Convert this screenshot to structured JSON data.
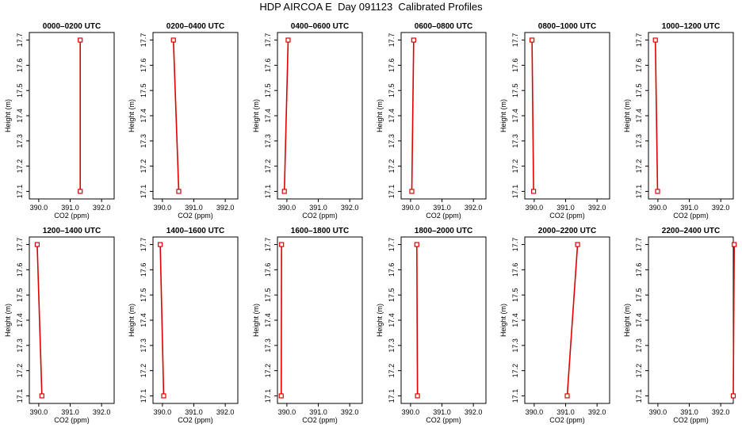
{
  "title": "HDP AIRCOA E  Day 091123  Calibrated Profiles",
  "chart_data": [
    {
      "type": "line",
      "title": "0000–0200 UTC",
      "xlabel": "CO2 (ppm)",
      "ylabel": "Height (m)",
      "xlim": [
        389.7,
        392.4
      ],
      "ylim": [
        17.07,
        17.73
      ],
      "xticks": [
        "390.0",
        "391.0",
        "392.0"
      ],
      "yticks": [
        "17.1",
        "17.2",
        "17.3",
        "17.4",
        "17.5",
        "17.6",
        "17.7"
      ],
      "grid": false,
      "series": [
        {
          "x": [
            391.32,
            391.32
          ],
          "y": [
            17.1,
            17.7
          ],
          "color": "#e00000"
        }
      ]
    },
    {
      "type": "line",
      "title": "0200–0400 UTC",
      "xlabel": "CO2 (ppm)",
      "ylabel": "Height (m)",
      "xlim": [
        389.7,
        392.4
      ],
      "ylim": [
        17.07,
        17.73
      ],
      "xticks": [
        "390.0",
        "391.0",
        "392.0"
      ],
      "yticks": [
        "17.1",
        "17.2",
        "17.3",
        "17.4",
        "17.5",
        "17.6",
        "17.7"
      ],
      "grid": false,
      "series": [
        {
          "x": [
            390.52,
            390.35
          ],
          "y": [
            17.1,
            17.7
          ],
          "color": "#e00000"
        }
      ]
    },
    {
      "type": "line",
      "title": "0400–0600 UTC",
      "xlabel": "CO2 (ppm)",
      "ylabel": "Height (m)",
      "xlim": [
        389.7,
        392.4
      ],
      "ylim": [
        17.07,
        17.73
      ],
      "xticks": [
        "390.0",
        "391.0",
        "392.0"
      ],
      "yticks": [
        "17.1",
        "17.2",
        "17.3",
        "17.4",
        "17.5",
        "17.6",
        "17.7"
      ],
      "grid": false,
      "series": [
        {
          "x": [
            389.92,
            390.04
          ],
          "y": [
            17.1,
            17.7
          ],
          "color": "#e00000"
        }
      ]
    },
    {
      "type": "line",
      "title": "0600–0800 UTC",
      "xlabel": "CO2 (ppm)",
      "ylabel": "Height (m)",
      "xlim": [
        389.7,
        392.4
      ],
      "ylim": [
        17.07,
        17.73
      ],
      "xticks": [
        "390.0",
        "391.0",
        "392.0"
      ],
      "yticks": [
        "17.1",
        "17.2",
        "17.3",
        "17.4",
        "17.5",
        "17.6",
        "17.7"
      ],
      "grid": false,
      "series": [
        {
          "x": [
            390.04,
            390.1
          ],
          "y": [
            17.1,
            17.7
          ],
          "color": "#e00000"
        }
      ]
    },
    {
      "type": "line",
      "title": "0800–1000 UTC",
      "xlabel": "CO2 (ppm)",
      "ylabel": "Height (m)",
      "xlim": [
        389.7,
        392.4
      ],
      "ylim": [
        17.07,
        17.73
      ],
      "xticks": [
        "390.0",
        "391.0",
        "392.0"
      ],
      "yticks": [
        "17.1",
        "17.2",
        "17.3",
        "17.4",
        "17.5",
        "17.6",
        "17.7"
      ],
      "grid": false,
      "series": [
        {
          "x": [
            389.98,
            389.93
          ],
          "y": [
            17.1,
            17.7
          ],
          "color": "#e00000"
        }
      ]
    },
    {
      "type": "line",
      "title": "1000–1200 UTC",
      "xlabel": "CO2 (ppm)",
      "ylabel": "Height (m)",
      "xlim": [
        389.7,
        392.4
      ],
      "ylim": [
        17.07,
        17.73
      ],
      "xticks": [
        "390.0",
        "391.0",
        "392.0"
      ],
      "yticks": [
        "17.1",
        "17.2",
        "17.3",
        "17.4",
        "17.5",
        "17.6",
        "17.7"
      ],
      "grid": false,
      "series": [
        {
          "x": [
            389.99,
            389.92
          ],
          "y": [
            17.1,
            17.7
          ],
          "color": "#e00000"
        }
      ]
    },
    {
      "type": "line",
      "title": "1200–1400 UTC",
      "xlabel": "CO2 (ppm)",
      "ylabel": "Height (m)",
      "xlim": [
        389.7,
        392.4
      ],
      "ylim": [
        17.07,
        17.73
      ],
      "xticks": [
        "390.0",
        "391.0",
        "392.0"
      ],
      "yticks": [
        "17.1",
        "17.2",
        "17.3",
        "17.4",
        "17.5",
        "17.6",
        "17.7"
      ],
      "grid": false,
      "series": [
        {
          "x": [
            390.1,
            389.95
          ],
          "y": [
            17.1,
            17.7
          ],
          "color": "#e00000"
        }
      ]
    },
    {
      "type": "line",
      "title": "1400–1600 UTC",
      "xlabel": "CO2 (ppm)",
      "ylabel": "Height (m)",
      "xlim": [
        389.7,
        392.4
      ],
      "ylim": [
        17.07,
        17.73
      ],
      "xticks": [
        "390.0",
        "391.0",
        "392.0"
      ],
      "yticks": [
        "17.1",
        "17.2",
        "17.3",
        "17.4",
        "17.5",
        "17.6",
        "17.7"
      ],
      "grid": false,
      "series": [
        {
          "x": [
            390.04,
            389.93
          ],
          "y": [
            17.1,
            17.7
          ],
          "color": "#e00000"
        }
      ]
    },
    {
      "type": "line",
      "title": "1600–1800 UTC",
      "xlabel": "CO2 (ppm)",
      "ylabel": "Height (m)",
      "xlim": [
        389.7,
        392.4
      ],
      "ylim": [
        17.07,
        17.73
      ],
      "xticks": [
        "390.0",
        "391.0",
        "392.0"
      ],
      "yticks": [
        "17.1",
        "17.2",
        "17.3",
        "17.4",
        "17.5",
        "17.6",
        "17.7"
      ],
      "grid": false,
      "series": [
        {
          "x": [
            389.82,
            389.83
          ],
          "y": [
            17.1,
            17.7
          ],
          "color": "#e00000"
        }
      ]
    },
    {
      "type": "line",
      "title": "1800–2000 UTC",
      "xlabel": "CO2 (ppm)",
      "ylabel": "Height (m)",
      "xlim": [
        389.7,
        392.4
      ],
      "ylim": [
        17.07,
        17.73
      ],
      "xticks": [
        "390.0",
        "391.0",
        "392.0"
      ],
      "yticks": [
        "17.1",
        "17.2",
        "17.3",
        "17.4",
        "17.5",
        "17.6",
        "17.7"
      ],
      "grid": false,
      "series": [
        {
          "x": [
            390.22,
            390.2
          ],
          "y": [
            17.1,
            17.7
          ],
          "color": "#e00000"
        }
      ]
    },
    {
      "type": "line",
      "title": "2000–2200 UTC",
      "xlabel": "CO2 (ppm)",
      "ylabel": "Height (m)",
      "xlim": [
        389.7,
        392.4
      ],
      "ylim": [
        17.07,
        17.73
      ],
      "xticks": [
        "390.0",
        "391.0",
        "392.0"
      ],
      "yticks": [
        "17.1",
        "17.2",
        "17.3",
        "17.4",
        "17.5",
        "17.6",
        "17.7"
      ],
      "grid": false,
      "series": [
        {
          "x": [
            391.05,
            391.38
          ],
          "y": [
            17.1,
            17.7
          ],
          "color": "#e00000"
        }
      ]
    },
    {
      "type": "line",
      "title": "2200–2400 UTC",
      "xlabel": "CO2 (ppm)",
      "ylabel": "Height (m)",
      "xlim": [
        389.7,
        392.4
      ],
      "ylim": [
        17.07,
        17.73
      ],
      "xticks": [
        "390.0",
        "391.0",
        "392.0"
      ],
      "yticks": [
        "17.1",
        "17.2",
        "17.3",
        "17.4",
        "17.5",
        "17.6",
        "17.7"
      ],
      "grid": false,
      "series": [
        {
          "x": [
            392.4,
            392.43
          ],
          "y": [
            17.1,
            17.7
          ],
          "color": "#e00000"
        }
      ]
    }
  ]
}
